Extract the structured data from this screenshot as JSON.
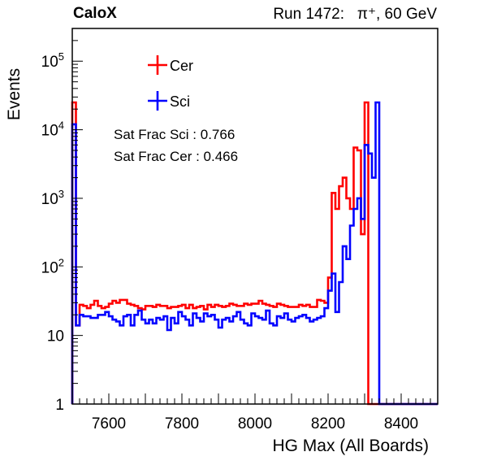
{
  "header": {
    "brand": "CaloX",
    "run_label": "Run 1472:",
    "particle": "π⁺, 60 GeV"
  },
  "annotations": [
    "Sat Frac Sci : 0.766",
    "Sat Frac Cer : 0.466"
  ],
  "colors": {
    "Cer": "#ff0000",
    "Sci": "#0000ff",
    "axis": "#000000"
  },
  "chart_data": {
    "type": "histogram",
    "xlabel": "HG Max (All Boards)",
    "ylabel": "Events",
    "y_scale": "log",
    "xlim": [
      7500,
      8500
    ],
    "ylim": [
      1,
      300000
    ],
    "x_ticks": [
      7600,
      7800,
      8000,
      8200,
      8400
    ],
    "y_ticks": [
      {
        "value": 1,
        "label": "1"
      },
      {
        "value": 10,
        "label": "10"
      },
      {
        "value": 100,
        "label": "10",
        "exp": "2"
      },
      {
        "value": 1000,
        "label": "10",
        "exp": "3"
      },
      {
        "value": 10000,
        "label": "10",
        "exp": "4"
      },
      {
        "value": 100000,
        "label": "10",
        "exp": "5"
      }
    ],
    "bin_width": 10,
    "legend_position": "top-left",
    "series": [
      {
        "name": "Cer",
        "x_start": 7500,
        "values": [
          25000,
          14,
          28,
          27,
          25,
          28,
          32,
          27,
          25,
          26,
          29,
          32,
          30,
          33,
          33,
          29,
          28,
          27,
          25,
          24,
          27,
          27,
          26,
          28,
          27,
          27,
          25,
          26,
          26,
          27,
          28,
          25,
          28,
          25,
          26,
          27,
          24,
          28,
          26,
          28,
          27,
          26,
          27,
          29,
          28,
          27,
          27,
          29,
          28,
          29,
          29,
          32,
          29,
          28,
          27,
          26,
          29,
          28,
          27,
          26,
          26,
          26,
          28,
          27,
          28,
          26,
          26,
          33,
          32,
          30,
          70,
          1200,
          700,
          1500,
          2000,
          1000,
          700,
          5500,
          5000,
          300,
          25000
        ]
      },
      {
        "name": "Sci",
        "x_start": 7500,
        "values": [
          12000,
          14,
          20,
          19,
          19,
          18,
          18,
          20,
          20,
          22,
          19,
          17,
          16,
          14,
          19,
          20,
          14,
          20,
          23,
          17,
          15,
          17,
          15,
          18,
          17,
          19,
          12,
          18,
          15,
          22,
          19,
          17,
          14,
          21,
          18,
          16,
          21,
          19,
          20,
          17,
          13,
          17,
          18,
          16,
          19,
          22,
          17,
          15,
          14,
          21,
          19,
          18,
          17,
          23,
          15,
          14,
          19,
          18,
          21,
          17,
          16,
          18,
          19,
          20,
          18,
          16,
          17,
          18,
          19,
          25,
          45,
          80,
          22,
          60,
          200,
          130,
          400,
          700,
          1000,
          500,
          6000,
          4500,
          2000,
          25000
        ]
      }
    ]
  }
}
